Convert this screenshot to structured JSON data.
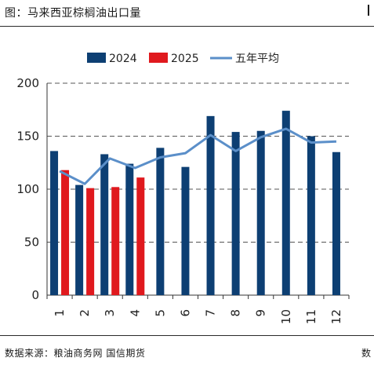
{
  "title": "图：马来西亚棕榈油出口量",
  "source": "数据来源：粮油商务网 国信期货",
  "footer_right": "数",
  "colors": {
    "bar2024": "#0d3f73",
    "bar2025": "#e0191e",
    "avg": "#5b8fc9",
    "grid": "#555555"
  },
  "chart_data": {
    "type": "bar",
    "categories": [
      "1",
      "2",
      "3",
      "4",
      "5",
      "6",
      "7",
      "8",
      "9",
      "10",
      "11",
      "12"
    ],
    "series": [
      {
        "name": "2024",
        "type": "bar",
        "values": [
          136,
          104,
          133,
          124,
          139,
          121,
          169,
          154,
          155,
          174,
          150,
          135
        ]
      },
      {
        "name": "2025",
        "type": "bar",
        "values": [
          118,
          101,
          102,
          111,
          null,
          null,
          null,
          null,
          null,
          null,
          null,
          null
        ]
      },
      {
        "name": "五年平均",
        "type": "line",
        "values": [
          117,
          105,
          129,
          120,
          130,
          134,
          151,
          136,
          149,
          157,
          144,
          145
        ]
      }
    ],
    "ylim": [
      0,
      200
    ],
    "yticks": [
      "0",
      "50",
      "100",
      "150",
      "200"
    ],
    "grid": "dashed-horizontal",
    "legend": "top"
  }
}
